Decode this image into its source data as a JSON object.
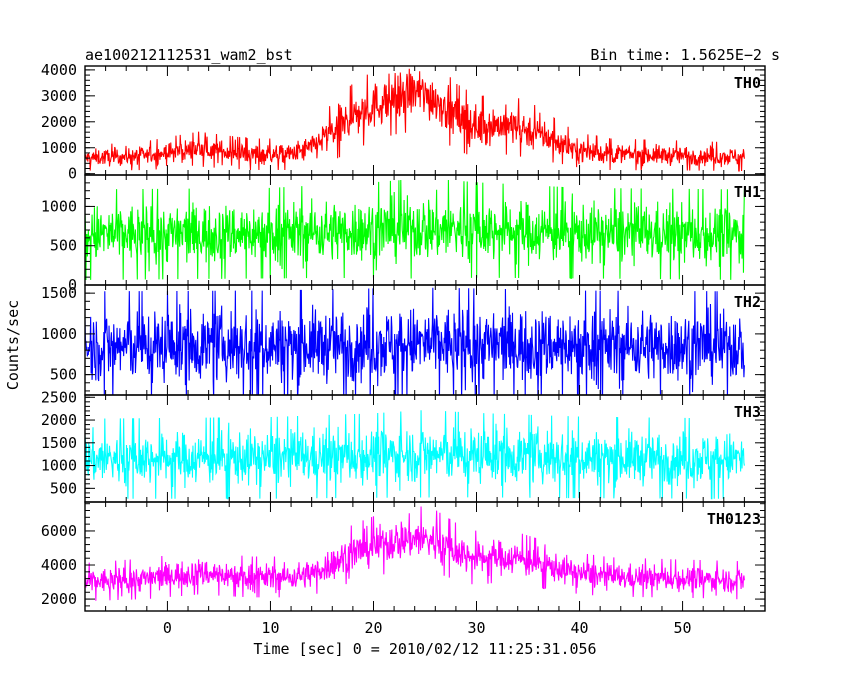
{
  "chart_data": {
    "type": "line",
    "title": "ae100212112531_wam2_bst",
    "bin_time_label": "Bin time: 1.5625E−2 s",
    "xlabel": "Time [sec] 0 = 2010/02/12 11:25:31.056",
    "ylabel": "Counts/sec",
    "xlim": [
      -8,
      58
    ],
    "x_ticks": [
      0,
      10,
      20,
      30,
      40,
      50
    ],
    "data_range": [
      -8,
      56
    ],
    "panels": [
      {
        "name": "TH0",
        "color": "#ff0000",
        "ylim": [
          -50,
          4150
        ],
        "y_ticks": [
          0,
          1000,
          2000,
          3000,
          4000
        ],
        "y_tick_labels": [
          "0",
          "1000",
          "2000",
          "3000",
          "4000"
        ],
        "profile": {
          "x": [
            -8,
            -2,
            3,
            8,
            12,
            14,
            16,
            18,
            20,
            22,
            24,
            26,
            28,
            30,
            32,
            34,
            36,
            38,
            40,
            43,
            50,
            56
          ],
          "mean": [
            600,
            700,
            950,
            750,
            750,
            1000,
            1600,
            2200,
            2600,
            2950,
            3150,
            2900,
            2200,
            1800,
            1900,
            1800,
            1550,
            1200,
            900,
            750,
            700,
            650
          ],
          "spread": [
            300,
            350,
            420,
            380,
            380,
            500,
            700,
            800,
            850,
            900,
            950,
            900,
            800,
            750,
            700,
            700,
            650,
            500,
            420,
            380,
            360,
            340
          ]
        }
      },
      {
        "name": "TH1",
        "color": "#00ff00",
        "ylim": [
          0,
          1400
        ],
        "y_ticks": [
          0,
          500,
          1000
        ],
        "y_tick_labels": [
          "0",
          "500",
          "1000"
        ],
        "profile": {
          "x": [
            -8,
            10,
            20,
            25,
            30,
            40,
            56
          ],
          "mean": [
            640,
            660,
            700,
            720,
            700,
            660,
            640
          ],
          "spread": [
            360,
            360,
            380,
            400,
            380,
            360,
            360
          ]
        }
      },
      {
        "name": "TH2",
        "color": "#0000ff",
        "ylim": [
          250,
          1600
        ],
        "y_ticks": [
          500,
          1000,
          1500
        ],
        "y_tick_labels": [
          "500",
          "1000",
          "1500"
        ],
        "profile": {
          "x": [
            -8,
            10,
            20,
            25,
            30,
            40,
            56
          ],
          "mean": [
            850,
            860,
            870,
            880,
            870,
            860,
            850
          ],
          "spread": [
            420,
            420,
            430,
            430,
            430,
            420,
            420
          ]
        }
      },
      {
        "name": "TH3",
        "color": "#00ffff",
        "ylim": [
          200,
          2550
        ],
        "y_ticks": [
          500,
          1000,
          1500,
          2000,
          2500
        ],
        "y_tick_labels": [
          "500",
          "1000",
          "1500",
          "2000",
          "2500"
        ],
        "profile": {
          "x": [
            -8,
            10,
            20,
            25,
            30,
            40,
            56
          ],
          "mean": [
            1150,
            1170,
            1220,
            1260,
            1230,
            1180,
            1150
          ],
          "spread": [
            550,
            560,
            580,
            600,
            580,
            560,
            550
          ]
        }
      },
      {
        "name": "TH0123",
        "color": "#ff00ff",
        "ylim": [
          1300,
          7700
        ],
        "y_ticks": [
          2000,
          4000,
          6000
        ],
        "y_tick_labels": [
          "2000",
          "4000",
          "6000"
        ],
        "profile": {
          "x": [
            -8,
            -2,
            3,
            8,
            12,
            14,
            16,
            18,
            20,
            22,
            24,
            26,
            28,
            30,
            32,
            34,
            36,
            38,
            40,
            43,
            50,
            56
          ],
          "mean": [
            3000,
            3200,
            3550,
            3300,
            3300,
            3500,
            4100,
            4700,
            5100,
            5400,
            5600,
            5400,
            4800,
            4400,
            4500,
            4400,
            4100,
            3800,
            3500,
            3300,
            3200,
            3100
          ],
          "spread": [
            700,
            750,
            800,
            750,
            750,
            800,
            950,
            1050,
            1100,
            1150,
            1200,
            1150,
            1050,
            1000,
            950,
            950,
            900,
            800,
            760,
            720,
            700,
            700
          ]
        }
      }
    ]
  }
}
